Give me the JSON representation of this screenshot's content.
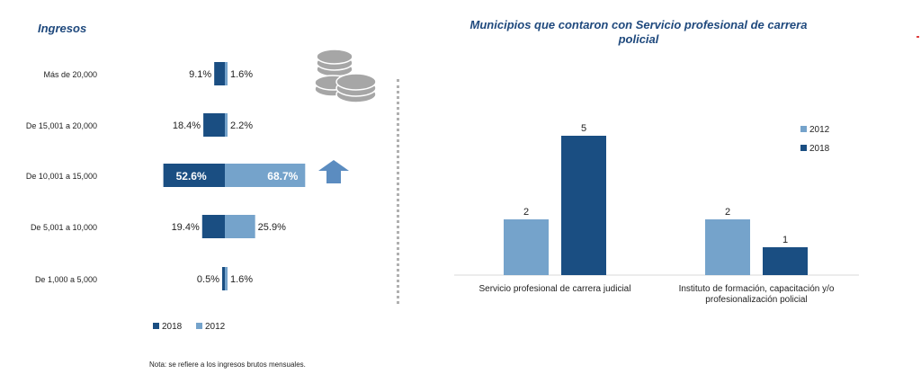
{
  "left_title": "Ingresos",
  "right_title": "Municipios que contaron con Servicio profesional de carrera policial",
  "note": "Nota: se refiere a los ingresos brutos mensuales.",
  "colors": {
    "s2018": "#1a4e82",
    "s2012": "#75a3cb",
    "title": "#1f497d"
  },
  "icons": [
    "coins-icon",
    "arrow-up-icon"
  ],
  "chart_data": [
    {
      "type": "bar",
      "orientation": "horizontal-diverging",
      "categories": [
        "Más de 20,000",
        "De 15,001 a 20,000",
        "De 10,001 a 15,000",
        "De 5,001 a 10,000",
        "De 1,000 a 5,000"
      ],
      "series": [
        {
          "name": "2018",
          "values": [
            9.1,
            18.4,
            52.6,
            19.4,
            0.5
          ],
          "labels": [
            "9.1%",
            "18.4%",
            "52.6%",
            "19.4%",
            "0.5%"
          ]
        },
        {
          "name": "2012",
          "values": [
            1.6,
            2.2,
            68.7,
            25.9,
            1.6
          ],
          "labels": [
            "1.6%",
            "2.2%",
            "68.7%",
            "25.9%",
            "1.6%"
          ]
        }
      ],
      "highlight_category": "De 10,001 a 15,000",
      "legend": [
        "2018",
        "2012"
      ],
      "legend_position": "bottom"
    },
    {
      "type": "bar",
      "categories": [
        "Servicio profesional de carrera judicial",
        "Instituto de formación, capacitación y/o profesionalización policial"
      ],
      "category_lines": [
        [
          "Servicio profesional de carrera judicial"
        ],
        [
          "Instituto de formación, capacitación y/o",
          "profesionalización policial"
        ]
      ],
      "series": [
        {
          "name": "2012",
          "values": [
            2,
            2
          ]
        },
        {
          "name": "2018",
          "values": [
            5,
            1
          ]
        }
      ],
      "ylim": [
        0,
        5
      ],
      "legend": [
        "2012",
        "2018"
      ],
      "legend_position": "right"
    }
  ]
}
